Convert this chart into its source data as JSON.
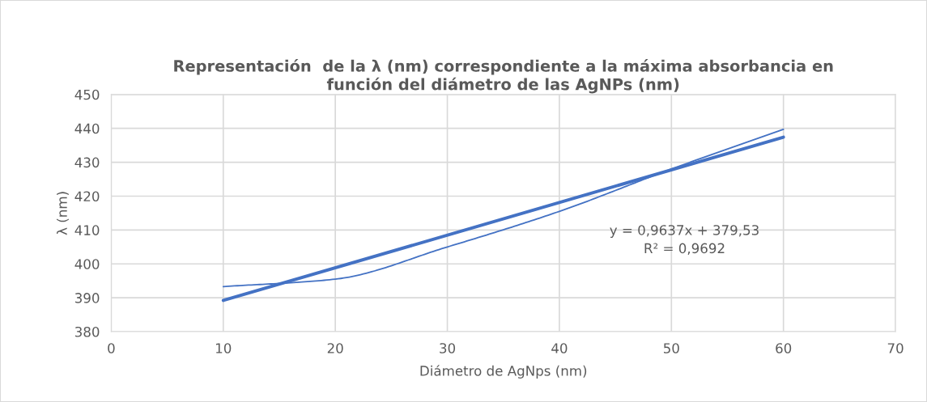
{
  "chart_data": {
    "type": "line",
    "title": "Representación  de la λ (nm) correspondiente a la máxima absorbancia en\nfunción del diámetro de las AgNPs (nm)",
    "xlabel": "Diámetro de AgNps (nm)",
    "ylabel": "λ (nm)",
    "x": [
      10,
      20,
      30,
      40,
      50,
      60
    ],
    "series": [
      {
        "color": "#4472c4",
        "values": [
          393.3,
          395.5,
          405,
          415.5,
          428,
          439.7
        ]
      },
      {
        "type": "line",
        "color": "#4472c4",
        "x": [
          10,
          60
        ],
        "values": [
          389.2,
          437.4
        ]
      }
    ],
    "annotations": [
      "y = 0,9637x + 379,53\nR² = 0,9692"
    ],
    "xlim": [
      0,
      70
    ],
    "xticks": [
      0,
      10,
      20,
      30,
      40,
      50,
      60,
      70
    ],
    "ylim": [
      380,
      450
    ],
    "yticks": [
      380,
      390,
      400,
      410,
      420,
      430,
      440,
      450
    ],
    "grid": true,
    "legend": false,
    "marker": "none",
    "line_style": "solid"
  }
}
